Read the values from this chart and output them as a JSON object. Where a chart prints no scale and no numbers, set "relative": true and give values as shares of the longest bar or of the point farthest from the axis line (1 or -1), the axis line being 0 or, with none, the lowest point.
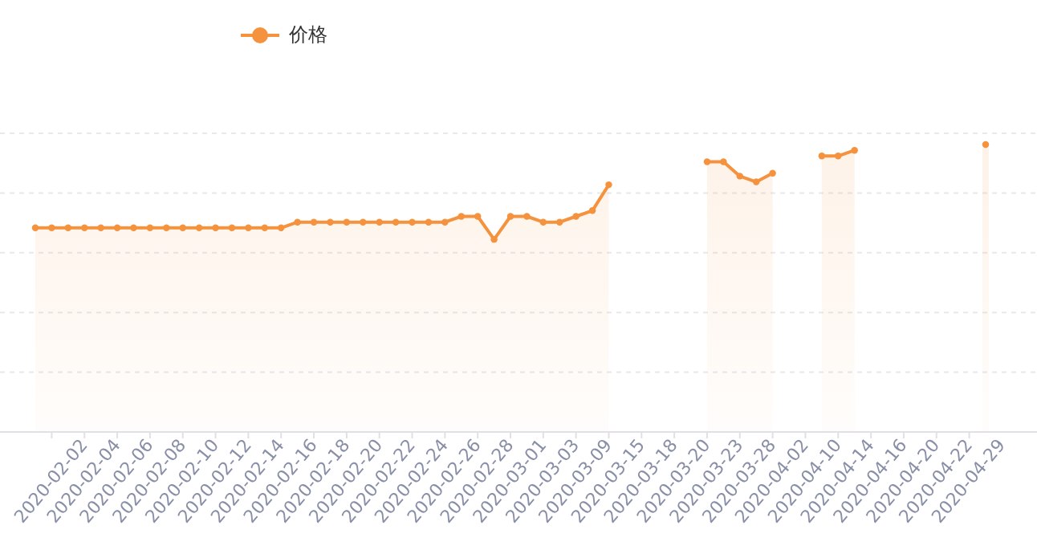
{
  "chart_data": {
    "type": "area",
    "relative": true,
    "categories": [
      null,
      "2020-02-02",
      null,
      "2020-02-04",
      null,
      "2020-02-06",
      null,
      "2020-02-08",
      null,
      "2020-02-10",
      null,
      "2020-02-12",
      null,
      "2020-02-14",
      null,
      "2020-02-16",
      null,
      "2020-02-18",
      null,
      "2020-02-20",
      null,
      "2020-02-22",
      null,
      "2020-02-24",
      null,
      "2020-02-26",
      null,
      "2020-02-28",
      null,
      "2020-03-01",
      null,
      "2020-03-03",
      null,
      "2020-03-09",
      null,
      "2020-03-15",
      null,
      "2020-03-18",
      null,
      "2020-03-20",
      null,
      "2020-03-23",
      null,
      "2020-03-28",
      null,
      "2020-04-02",
      null,
      "2020-04-10",
      null,
      "2020-04-14",
      null,
      "2020-04-16",
      null,
      "2020-04-20",
      null,
      "2020-04-22",
      null,
      "2020-04-29",
      null
    ],
    "series": [
      {
        "name": "价格",
        "color": "#f5923e",
        "values": [
          0.71,
          0.71,
          0.71,
          0.71,
          0.71,
          0.71,
          0.71,
          0.71,
          0.71,
          0.71,
          0.71,
          0.71,
          0.71,
          0.71,
          0.71,
          0.71,
          0.73,
          0.73,
          0.73,
          0.73,
          0.73,
          0.73,
          0.73,
          0.73,
          0.73,
          0.73,
          0.75,
          0.75,
          0.67,
          0.75,
          0.75,
          0.73,
          0.73,
          0.75,
          0.77,
          0.86,
          null,
          null,
          null,
          null,
          null,
          0.94,
          0.94,
          0.89,
          0.87,
          0.9,
          null,
          null,
          0.96,
          0.96,
          0.98,
          null,
          null,
          null,
          null,
          null,
          null,
          null,
          1
        ]
      }
    ],
    "grid": "y",
    "legend": "top left",
    "marker": "circle",
    "line_style": "solid"
  }
}
